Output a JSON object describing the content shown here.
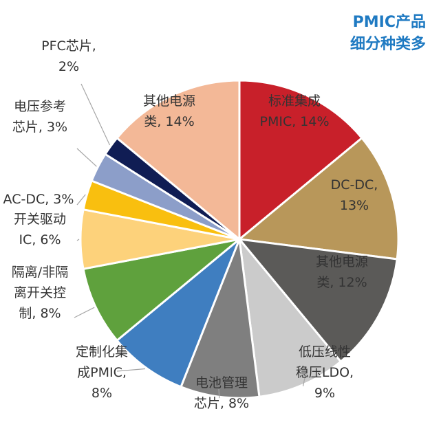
{
  "title_lines": [
    "PMIC产品",
    "细分种类多"
  ],
  "chart_data": {
    "type": "pie",
    "title": "PMIC产品细分种类多",
    "start_angle_deg": 0,
    "direction": "clockwise",
    "slices": [
      {
        "label_lines": [
          "标准集成",
          "PMIC, 14%"
        ],
        "value": 14,
        "color": "#c8202a",
        "label_pos": "inside",
        "text_color": "#ffffff"
      },
      {
        "label_lines": [
          "DC-DC,",
          "13%"
        ],
        "value": 13,
        "color": "#b8975a",
        "label_pos": "inside",
        "text_color": "#ffffff"
      },
      {
        "label_lines": [
          "其他电源",
          "类, 12%"
        ],
        "value": 12,
        "color": "#5b5a58",
        "label_pos": "inside",
        "text_color": "#ffffff"
      },
      {
        "label_lines": [
          "低压线性",
          "稳压LDO,",
          "9%"
        ],
        "value": 9,
        "color": "#cbcbcb",
        "label_pos": "outside",
        "text_color": "#333333"
      },
      {
        "label_lines": [
          "电池管理",
          "芯片, 8%"
        ],
        "value": 8,
        "color": "#7f7f7f",
        "label_pos": "outside",
        "text_color": "#333333"
      },
      {
        "label_lines": [
          "定制化集",
          "成PMIC,",
          "8%"
        ],
        "value": 8,
        "color": "#3f7ec0",
        "label_pos": "outside",
        "text_color": "#333333"
      },
      {
        "label_lines": [
          "隔离/非隔",
          "离开关控",
          "制, 8%"
        ],
        "value": 8,
        "color": "#5fa13d",
        "label_pos": "outside",
        "text_color": "#333333"
      },
      {
        "label_lines": [
          "开关驱动",
          "IC, 6%"
        ],
        "value": 6,
        "color": "#fdd27b",
        "label_pos": "outside",
        "text_color": "#333333"
      },
      {
        "label_lines": [
          "AC-DC, 3%"
        ],
        "value": 3,
        "color": "#f9bf0f",
        "label_pos": "outside",
        "text_color": "#333333"
      },
      {
        "label_lines": [
          "电压参考",
          "芯片, 3%"
        ],
        "value": 3,
        "color": "#8c9ec9",
        "label_pos": "outside",
        "text_color": "#333333"
      },
      {
        "label_lines": [
          "PFC芯片,",
          "2%"
        ],
        "value": 2,
        "color": "#101d54",
        "label_pos": "outside",
        "text_color": "#333333"
      },
      {
        "label_lines": [
          "其他电源",
          "类, 14%"
        ],
        "value": 14,
        "color": "#f3b897",
        "label_pos": "inside",
        "text_color": "#333333"
      }
    ]
  }
}
